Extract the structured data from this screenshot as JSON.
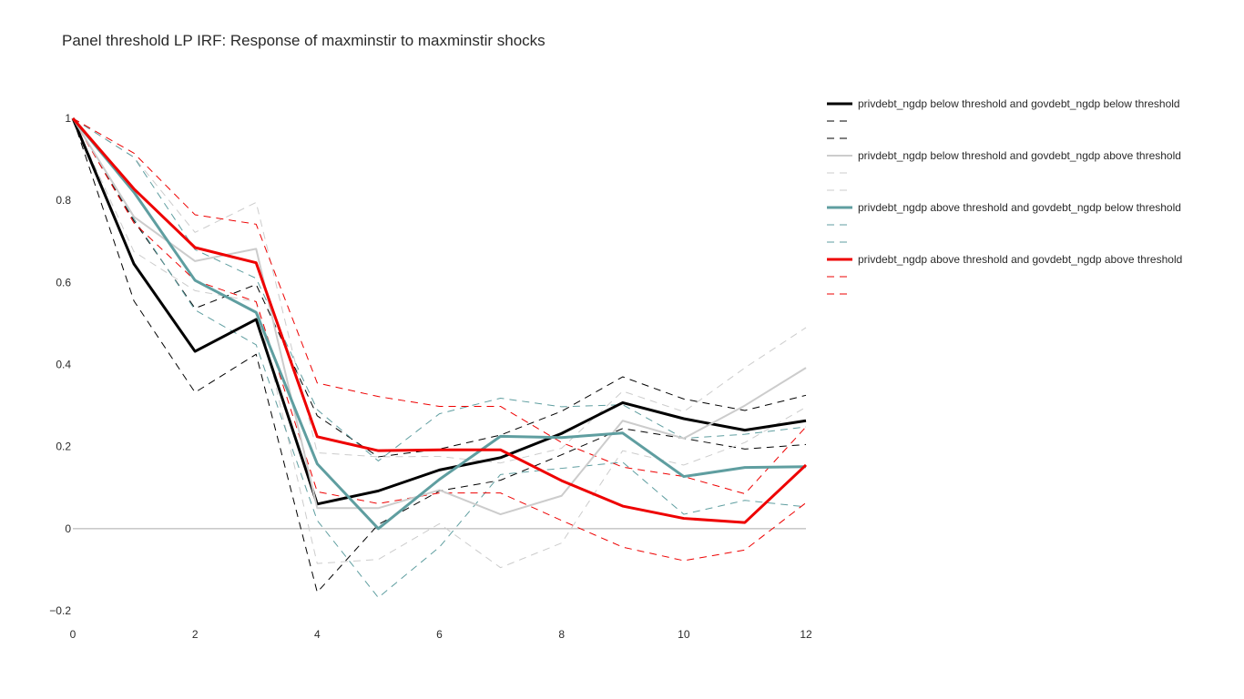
{
  "chart_data": {
    "type": "line",
    "title": "Panel threshold LP IRF: Response of maxminstir to maxminstir shocks",
    "xlabel": "",
    "ylabel": "",
    "x": [
      0,
      1,
      2,
      3,
      4,
      5,
      6,
      7,
      8,
      9,
      10,
      11,
      12
    ],
    "xlim": [
      0,
      12
    ],
    "ylim": [
      -0.2,
      1.0
    ],
    "x_ticks": [
      0,
      2,
      4,
      6,
      8,
      10,
      12
    ],
    "y_ticks": [
      {
        "value": -0.2,
        "label": "−0.2"
      },
      {
        "value": 0,
        "label": "0"
      },
      {
        "value": 0.2,
        "label": "0.2"
      },
      {
        "value": 0.4,
        "label": "0.4"
      },
      {
        "value": 0.6,
        "label": "0.6"
      },
      {
        "value": 0.8,
        "label": "0.8"
      },
      {
        "value": 1,
        "label": "1"
      }
    ],
    "grid": false,
    "zero_line": true,
    "legend_placement": "right",
    "series": [
      {
        "name": "privdebt_ngdp below threshold and govdebt_ngdp below threshold",
        "color": "#000000",
        "style": "solid",
        "values": [
          1.0,
          0.645,
          0.432,
          0.51,
          0.06,
          0.092,
          0.143,
          0.173,
          0.232,
          0.307,
          0.268,
          0.24,
          0.263
        ]
      },
      {
        "name": "",
        "color": "#000000",
        "style": "dash",
        "values": [
          1.0,
          0.75,
          0.537,
          0.595,
          0.275,
          0.175,
          0.194,
          0.228,
          0.286,
          0.37,
          0.316,
          0.288,
          0.325
        ]
      },
      {
        "name": "",
        "color": "#000000",
        "style": "dash",
        "values": [
          1.0,
          0.555,
          0.332,
          0.425,
          -0.155,
          0.01,
          0.092,
          0.118,
          0.18,
          0.244,
          0.22,
          0.194,
          0.205
        ]
      },
      {
        "name": "privdebt_ngdp below threshold and govdebt_ngdp above threshold",
        "color": "#cccccc",
        "style": "solid",
        "values": [
          1.0,
          0.76,
          0.652,
          0.682,
          0.05,
          0.05,
          0.094,
          0.035,
          0.08,
          0.263,
          0.22,
          0.3,
          0.392
        ]
      },
      {
        "name": "",
        "color": "#cccccc",
        "style": "dash",
        "values": [
          1.0,
          0.905,
          0.722,
          0.795,
          0.185,
          0.175,
          0.176,
          0.16,
          0.196,
          0.335,
          0.285,
          0.392,
          0.49
        ]
      },
      {
        "name": "",
        "color": "#cccccc",
        "style": "dash",
        "values": [
          1.0,
          0.675,
          0.58,
          0.553,
          -0.085,
          -0.075,
          0.012,
          -0.095,
          -0.035,
          0.19,
          0.155,
          0.21,
          0.296
        ]
      },
      {
        "name": "privdebt_ngdp above threshold and govdebt_ngdp below threshold",
        "color": "#5f9ea0",
        "style": "solid",
        "values": [
          1.0,
          0.82,
          0.605,
          0.527,
          0.158,
          0.0,
          0.12,
          0.225,
          0.222,
          0.233,
          0.127,
          0.149,
          0.151
        ]
      },
      {
        "name": "",
        "color": "#5f9ea0",
        "style": "dash",
        "values": [
          1.0,
          0.905,
          0.68,
          0.61,
          0.29,
          0.165,
          0.28,
          0.318,
          0.297,
          0.302,
          0.22,
          0.23,
          0.248
        ]
      },
      {
        "name": "",
        "color": "#5f9ea0",
        "style": "dash",
        "values": [
          1.0,
          0.755,
          0.533,
          0.448,
          0.02,
          -0.168,
          -0.045,
          0.132,
          0.147,
          0.162,
          0.035,
          0.069,
          0.053
        ]
      },
      {
        "name": "privdebt_ngdp above threshold and govdebt_ngdp above threshold",
        "color": "#ee0000",
        "style": "solid",
        "values": [
          1.0,
          0.828,
          0.685,
          0.648,
          0.224,
          0.19,
          0.192,
          0.192,
          0.117,
          0.055,
          0.025,
          0.015,
          0.155
        ]
      },
      {
        "name": "",
        "color": "#ee0000",
        "style": "dash",
        "values": [
          1.0,
          0.915,
          0.765,
          0.742,
          0.355,
          0.322,
          0.298,
          0.298,
          0.21,
          0.15,
          0.127,
          0.085,
          0.248
        ]
      },
      {
        "name": "",
        "color": "#ee0000",
        "style": "dash",
        "values": [
          1.0,
          0.745,
          0.605,
          0.553,
          0.09,
          0.061,
          0.087,
          0.087,
          0.02,
          -0.045,
          -0.078,
          -0.052,
          0.063
        ]
      }
    ]
  }
}
